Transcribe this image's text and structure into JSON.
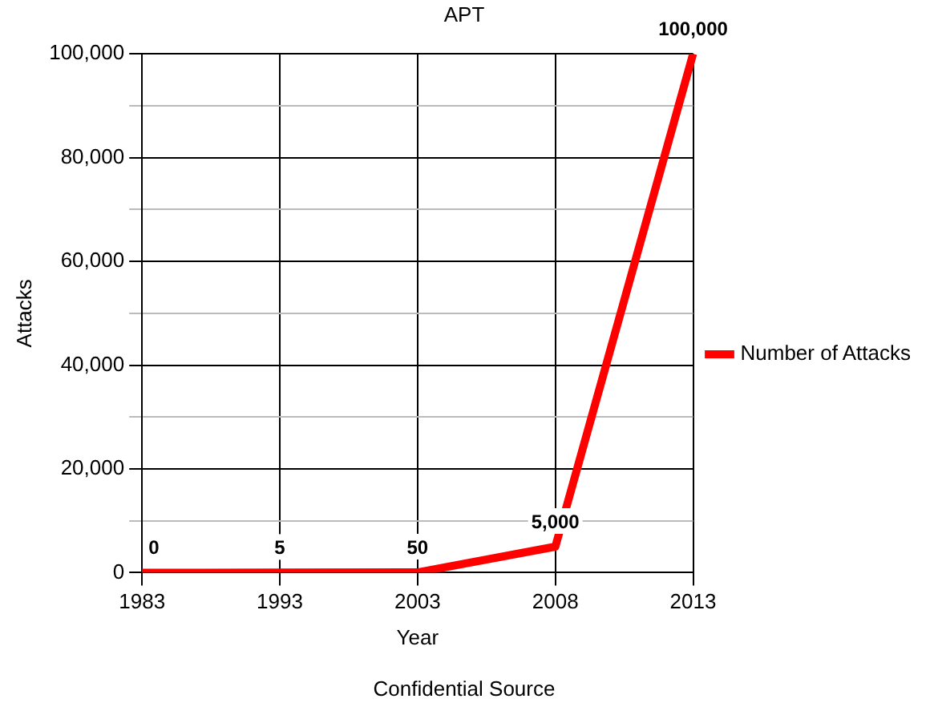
{
  "chart_data": {
    "type": "line",
    "title": "APT",
    "xlabel": "Year",
    "ylabel": "Attacks",
    "categories": [
      "1983",
      "1993",
      "2003",
      "2008",
      "2013"
    ],
    "series": [
      {
        "name": "Number of Attacks",
        "color": "#ff0000",
        "values": [
          0,
          5,
          50,
          5000,
          100000
        ],
        "value_labels": [
          "0",
          "5",
          "50",
          "5,000",
          "100,000"
        ]
      }
    ],
    "ylim": [
      0,
      100000
    ],
    "yticks": [
      0,
      {
        "value": 10000,
        "label": null
      },
      {
        "value": 20000,
        "label": "20,000"
      },
      {
        "value": 30000,
        "label": null
      },
      {
        "value": 40000,
        "label": "40,000"
      },
      {
        "value": 50000,
        "label": null
      },
      {
        "value": 60000,
        "label": "60,000"
      },
      {
        "value": 70000,
        "label": null
      },
      {
        "value": 80000,
        "label": "80,000"
      },
      {
        "value": 90000,
        "label": null
      },
      {
        "value": 100000,
        "label": "100,000"
      }
    ],
    "grid": true,
    "legend": "right",
    "marker": "none",
    "line_style": "solid",
    "annotations": [
      "Confidential Source"
    ]
  }
}
